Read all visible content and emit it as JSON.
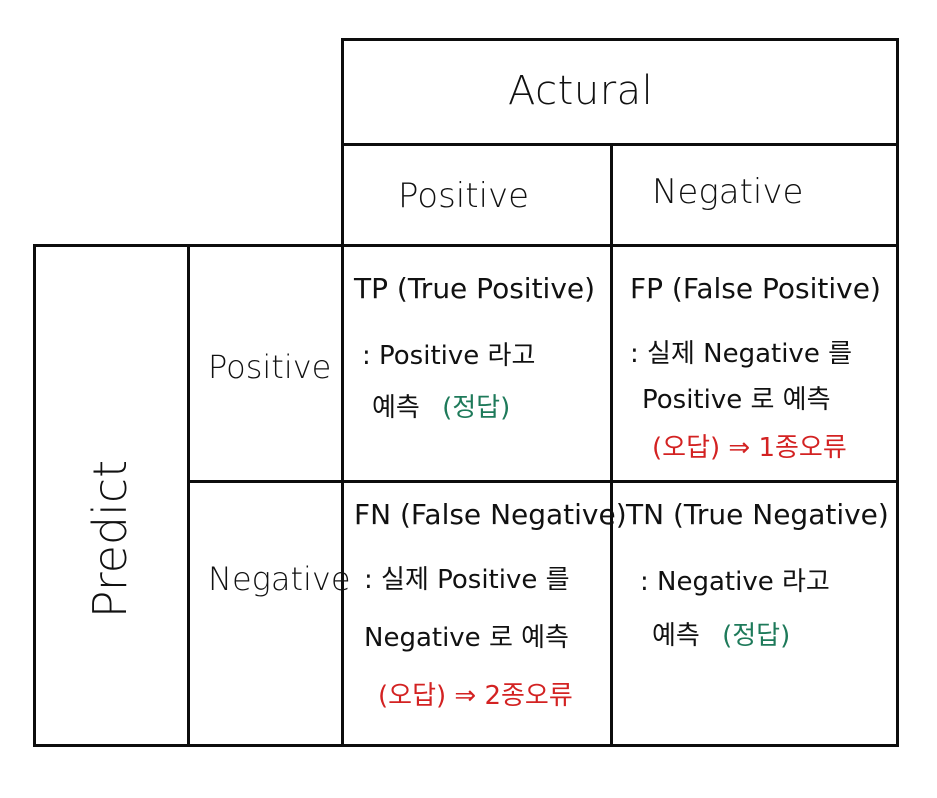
{
  "actual_header": "Actural",
  "predict_header": "Predict",
  "actual_cols": [
    "Positive",
    "Negative"
  ],
  "predict_rows": [
    "Positive",
    "Negative"
  ],
  "cells": {
    "tp": {
      "title": "TP (True Positive)",
      "line1": ": Positive 라고",
      "line2": "예측",
      "result": "(정답)"
    },
    "fp": {
      "title": "FP (False Positive)",
      "line1": ": 실제 Negative 를",
      "line2": "Positive 로 예측",
      "result": "(오답) ⇒ 1종오류"
    },
    "fn": {
      "title": "FN (False Negative)",
      "line1": ": 실제 Positive 를",
      "line2": "Negative 로 예측",
      "result": "(오답) ⇒ 2종오류"
    },
    "tn": {
      "title": "TN (True Negative)",
      "line1": ": Negative 라고",
      "line2": "예측",
      "result": "(정답)"
    }
  },
  "colors": {
    "correct": "#1e7a5a",
    "error": "#d32222",
    "line": "#0d0d0d"
  }
}
